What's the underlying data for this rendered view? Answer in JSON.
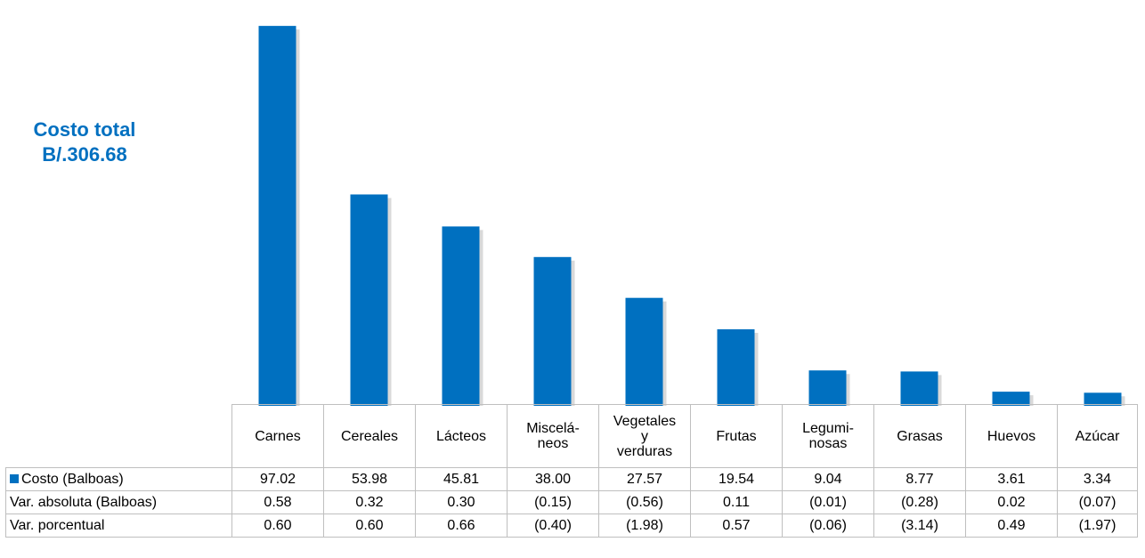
{
  "annotation": {
    "line1": "Costo total",
    "line2": "B/.306.68"
  },
  "colors": {
    "bar": "#0070C0",
    "shadow": "#d9d9d9",
    "annotation": "#0070C0"
  },
  "chart_data": {
    "type": "bar",
    "title": "",
    "xlabel": "",
    "ylabel": "",
    "ylim": [
      0,
      100
    ],
    "grid": false,
    "categories": [
      "Carnes",
      "Cereales",
      "Lácteos",
      "Miscelá-\nneos",
      "Vegetales\ny\nverduras",
      "Frutas",
      "Legumi-\nnosas",
      "Grasas",
      "Huevos",
      "Azúcar"
    ],
    "series": [
      {
        "name": "Costo (Balboas)",
        "values": [
          97.02,
          53.98,
          45.81,
          38.0,
          27.57,
          19.54,
          9.04,
          8.77,
          3.61,
          3.34
        ]
      }
    ]
  },
  "table": {
    "rows": [
      {
        "label": "Costo (Balboas)",
        "legend_key": true,
        "values": [
          "97.02",
          "53.98",
          "45.81",
          "38.00",
          "27.57",
          "19.54",
          "9.04",
          "8.77",
          "3.61",
          "3.34"
        ]
      },
      {
        "label": "Var. absoluta (Balboas)",
        "legend_key": false,
        "values": [
          "0.58",
          "0.32",
          "0.30",
          "(0.15)",
          "(0.56)",
          "0.11",
          "(0.01)",
          "(0.28)",
          "0.02",
          "(0.07)"
        ]
      },
      {
        "label": "Var. porcentual",
        "legend_key": false,
        "values": [
          "0.60",
          "0.60",
          "0.66",
          "(0.40)",
          "(1.98)",
          "0.57",
          "(0.06)",
          "(3.14)",
          "0.49",
          "(1.97)"
        ]
      }
    ]
  }
}
